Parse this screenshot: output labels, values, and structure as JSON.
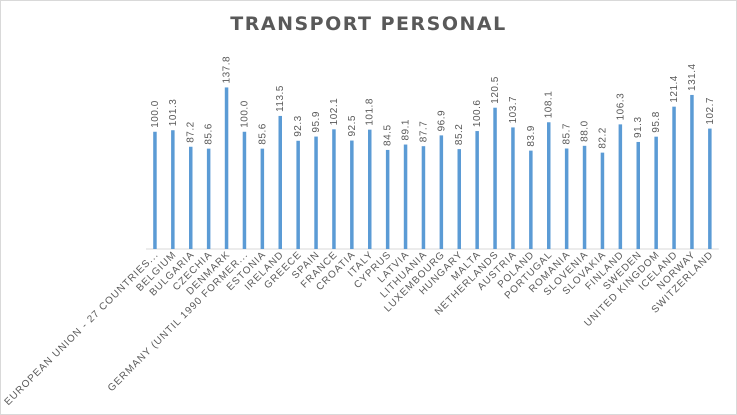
{
  "chart_data": {
    "type": "bar",
    "title": "TRANSPORT PERSONAL",
    "xlabel": "",
    "ylabel": "",
    "categories": [
      "EUROPEAN UNION - 27 COUNTRIES...",
      "BELGIUM",
      "BULGARIA",
      "CZECHIA",
      "DENMARK",
      "GERMANY (UNTIL 1990 FORMER...",
      "ESTONIA",
      "IRELAND",
      "GREECE",
      "SPAIN",
      "FRANCE",
      "CROATIA",
      "ITALY",
      "CYPRUS",
      "LATVIA",
      "LITHUANIA",
      "LUXEMBOURG",
      "HUNGARY",
      "MALTA",
      "NETHERLANDS",
      "AUSTRIA",
      "POLAND",
      "PORTUGAL",
      "ROMANIA",
      "SLOVENIA",
      "SLOVAKIA",
      "FINLAND",
      "SWEDEN",
      "UNITED KINGDOM",
      "ICELAND",
      "NORWAY",
      "SWITZERLAND"
    ],
    "values": [
      100.0,
      101.3,
      87.2,
      85.6,
      137.8,
      100.0,
      85.6,
      113.5,
      92.3,
      95.9,
      102.1,
      92.5,
      101.8,
      84.5,
      89.1,
      87.7,
      96.9,
      85.2,
      100.6,
      120.5,
      103.7,
      83.9,
      108.1,
      85.7,
      88.0,
      82.2,
      106.3,
      91.3,
      95.8,
      121.4,
      131.4,
      102.7
    ],
    "value_labels": [
      "100.0",
      "101.3",
      "87.2",
      "85.6",
      "137.8",
      "100.0",
      "85.6",
      "113.5",
      "92.3",
      "95.9",
      "102.1",
      "92.5",
      "101.8",
      "84.5",
      "89.1",
      "87.7",
      "96.9",
      "85.2",
      "100.6",
      "120.5",
      "103.7",
      "83.9",
      "108.1",
      "85.7",
      "88.0",
      "82.2",
      "106.3",
      "91.3",
      "95.8",
      "121.4",
      "131.4",
      "102.7"
    ],
    "ylim": [
      0,
      145
    ],
    "bar_color": "#5b9bd5",
    "label_color": "#595959",
    "grid": false,
    "legend": "none"
  }
}
